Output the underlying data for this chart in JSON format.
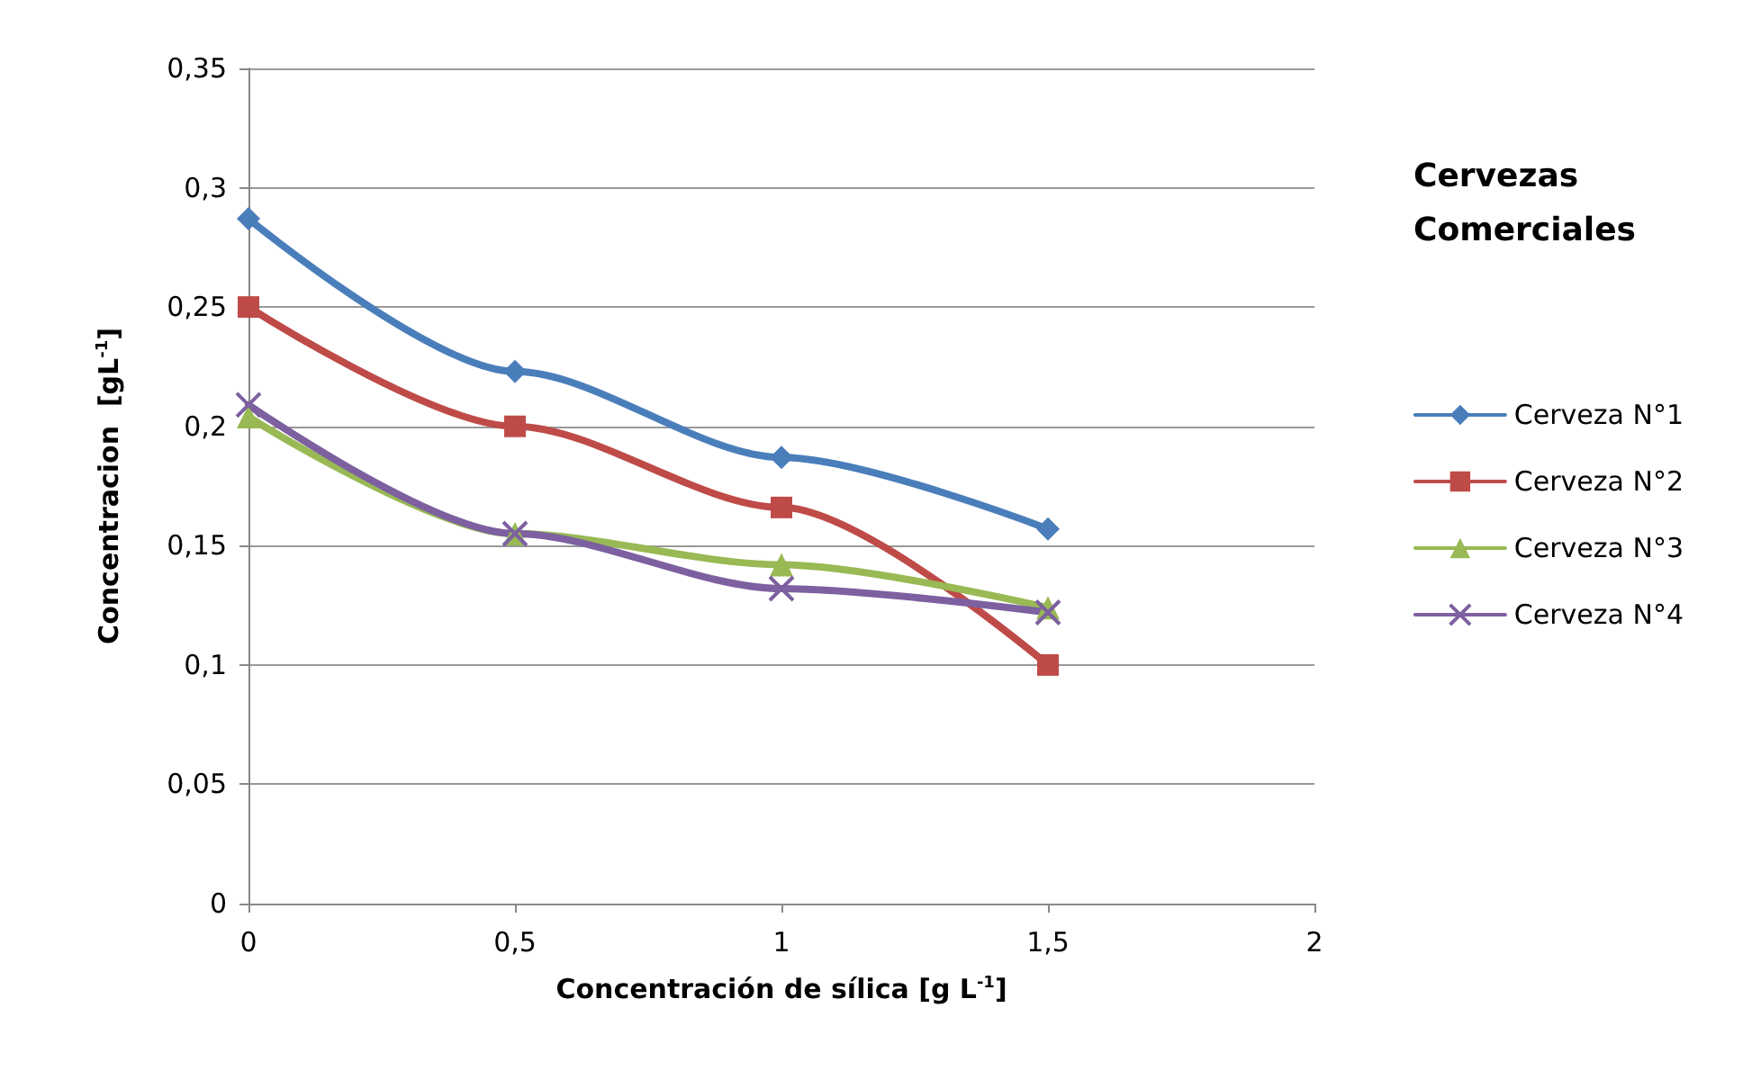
{
  "chart_data": {
    "type": "line",
    "xlabel": "Concentración de sílica [g L$^{-1}$]",
    "ylabel": "Concentracion  [gL$^{-1}$]",
    "legend_title": "Cervezas Comerciales",
    "x": [
      0,
      0.5,
      1,
      1.5
    ],
    "series": [
      {
        "name": "Cerveza N°1",
        "color": "#4a7ebb",
        "marker": "diamond",
        "values": [
          0.287,
          0.223,
          0.187,
          0.157
        ]
      },
      {
        "name": "Cerveza N°2",
        "color": "#be4b48",
        "marker": "square",
        "values": [
          0.25,
          0.2,
          0.166,
          0.1
        ]
      },
      {
        "name": "Cerveza N°3",
        "color": "#98b954",
        "marker": "triangle",
        "values": [
          0.204,
          0.155,
          0.142,
          0.124
        ]
      },
      {
        "name": "Cerveza N°4",
        "color": "#7d60a0",
        "marker": "cross",
        "values": [
          0.209,
          0.155,
          0.132,
          0.122
        ]
      }
    ],
    "xlim": [
      0,
      2
    ],
    "xticks": [
      0,
      {
        "value": 0.5,
        "label": "0,5"
      },
      1,
      {
        "value": 1.5,
        "label": "1,5"
      },
      2
    ],
    "ylim": [
      0,
      0.35
    ],
    "yticks": [
      0,
      {
        "value": 0.05,
        "label": "0,05"
      },
      {
        "value": 0.1,
        "label": "0,1"
      },
      {
        "value": 0.15,
        "label": "0,15"
      },
      {
        "value": 0.2,
        "label": "0,2"
      },
      {
        "value": 0.25,
        "label": "0,25"
      },
      {
        "value": 0.3,
        "label": "0,3"
      },
      {
        "value": 0.35,
        "label": "0,35"
      }
    ],
    "grid": "y",
    "legend": "right"
  }
}
